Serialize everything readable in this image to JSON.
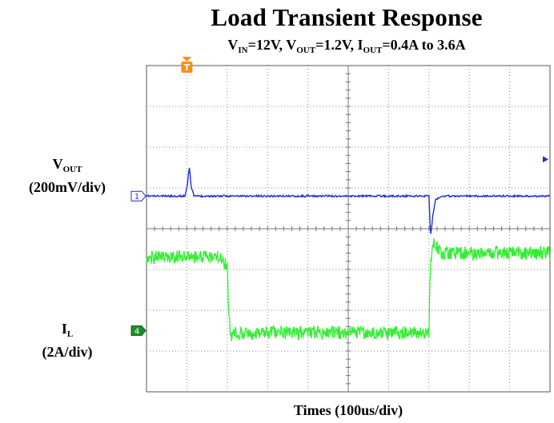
{
  "chart_data": {
    "type": "line",
    "title": "Load Transient Response",
    "subtitle": {
      "parts": [
        {
          "text": "V",
          "sub": "IN"
        },
        {
          "text": "=12V, V",
          "sub": "OUT"
        },
        {
          "text": "=1.2V, I",
          "sub": "OUT"
        },
        {
          "text": "=0.4A to 3.6A",
          "sub": ""
        }
      ]
    },
    "xlabel": "Times (100us/div)",
    "x_divisions": 10,
    "y_divisions": 8,
    "grid": true,
    "xlim_us": [
      0,
      1000
    ],
    "series": [
      {
        "label": "V",
        "label_sub": "OUT",
        "scale": "(200mV/div)",
        "marker": "1",
        "color": "#1f2fd6",
        "points": [
          [
            0,
            3.2
          ],
          [
            95,
            3.2
          ],
          [
            101,
            3.45
          ],
          [
            106,
            3.95
          ],
          [
            111,
            3.4
          ],
          [
            118,
            3.2
          ],
          [
            700,
            3.2
          ],
          [
            701,
            2.95
          ],
          [
            704,
            2.2
          ],
          [
            710,
            2.75
          ],
          [
            716,
            3.1
          ],
          [
            730,
            3.2
          ],
          [
            1000,
            3.2
          ]
        ]
      },
      {
        "label": "I",
        "label_sub": "L",
        "scale": "(2A/div)",
        "marker": "4",
        "color": "#33ee33",
        "points": [
          [
            0,
            1.8
          ],
          [
            180,
            1.8
          ],
          [
            200,
            1.6
          ],
          [
            204,
            0.45
          ],
          [
            208,
            -0.15
          ],
          [
            215,
            -0.05
          ],
          [
            700,
            -0.05
          ],
          [
            702,
            1.1
          ],
          [
            706,
            1.85
          ],
          [
            712,
            2.15
          ],
          [
            730,
            1.9
          ],
          [
            1000,
            1.9
          ]
        ]
      }
    ],
    "trigger_marker": "T"
  }
}
